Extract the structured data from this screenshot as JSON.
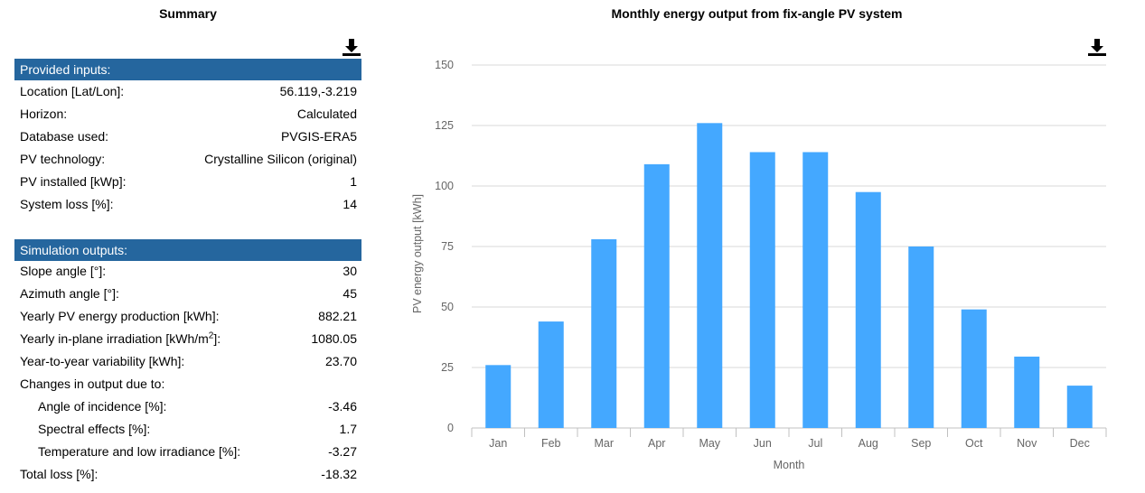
{
  "summary": {
    "title": "Summary",
    "download_icon": "download-icon",
    "provided_inputs": {
      "header": "Provided inputs:",
      "rows": [
        {
          "label": "Location [Lat/Lon]:",
          "value": "56.119,-3.219"
        },
        {
          "label": "Horizon:",
          "value": "Calculated"
        },
        {
          "label": "Database used:",
          "value": "PVGIS-ERA5"
        },
        {
          "label": "PV technology:",
          "value": "Crystalline Silicon (original)"
        },
        {
          "label": "PV installed [kWp]:",
          "value": "1"
        },
        {
          "label": "System loss [%]:",
          "value": "14"
        }
      ]
    },
    "simulation_outputs": {
      "header": "Simulation outputs:",
      "rows": [
        {
          "label": "Slope angle [°]:",
          "value": "30"
        },
        {
          "label": "Azimuth angle [°]:",
          "value": "45"
        },
        {
          "label": "Yearly PV energy production [kWh]:",
          "value": "882.21"
        },
        {
          "label": "Yearly in-plane irradiation [kWh/m",
          "label_sup": "2",
          "label_after": "]:",
          "value": "1080.05"
        },
        {
          "label": "Year-to-year variability [kWh]:",
          "value": "23.70"
        },
        {
          "label": "Changes in output due to:",
          "value": ""
        },
        {
          "label": "Angle of incidence [%]:",
          "value": "-3.46",
          "indent": true
        },
        {
          "label": "Spectral effects [%]:",
          "value": "1.7",
          "indent": true
        },
        {
          "label": "Temperature and low irradiance [%]:",
          "value": "-3.27",
          "indent": true
        },
        {
          "label": "Total loss [%]:",
          "value": "-18.32"
        }
      ]
    }
  },
  "colors": {
    "section_header_bg": "#25669e",
    "bar": "#44a8ff",
    "grid": "#d9d9d9",
    "axis_text": "#666666"
  },
  "chart_data": {
    "type": "bar",
    "title": "Monthly energy output from fix-angle PV system",
    "xlabel": "Month",
    "ylabel": "PV energy output [kWh]",
    "categories": [
      "Jan",
      "Feb",
      "Mar",
      "Apr",
      "May",
      "Jun",
      "Jul",
      "Aug",
      "Sep",
      "Oct",
      "Nov",
      "Dec"
    ],
    "values": [
      26,
      44,
      78,
      109,
      126,
      114,
      114,
      97.5,
      75,
      49,
      29.5,
      17.5
    ],
    "ylim": [
      0,
      150
    ],
    "yticks": [
      0,
      25,
      50,
      75,
      100,
      125,
      150
    ],
    "grid": true,
    "download_icon": "download-icon"
  }
}
